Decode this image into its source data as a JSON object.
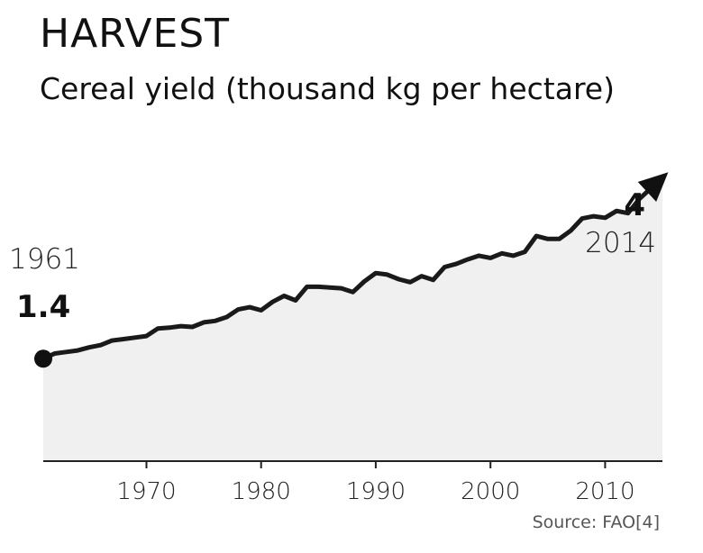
{
  "chart_data": {
    "type": "area",
    "title": "HARVEST",
    "subtitle": "Cereal yield (thousand kg per hectare)",
    "xlabel": "",
    "ylabel": "",
    "xlim": [
      1961,
      2015
    ],
    "ylim": [
      0,
      4.3
    ],
    "x_ticks": [
      1970,
      1980,
      1990,
      2000,
      2010
    ],
    "grid": false,
    "legend": "none",
    "x": [
      1961,
      1962,
      1963,
      1964,
      1965,
      1966,
      1967,
      1968,
      1969,
      1970,
      1971,
      1972,
      1973,
      1974,
      1975,
      1976,
      1977,
      1978,
      1979,
      1980,
      1981,
      1982,
      1983,
      1984,
      1985,
      1986,
      1987,
      1988,
      1989,
      1990,
      1991,
      1992,
      1993,
      1994,
      1995,
      1996,
      1997,
      1998,
      1999,
      2000,
      2001,
      2002,
      2003,
      2004,
      2005,
      2006,
      2007,
      2008,
      2009,
      2010,
      2011,
      2012,
      2013,
      2014
    ],
    "values": [
      1.35,
      1.42,
      1.44,
      1.46,
      1.5,
      1.53,
      1.59,
      1.61,
      1.63,
      1.65,
      1.75,
      1.76,
      1.78,
      1.77,
      1.83,
      1.85,
      1.9,
      2.0,
      2.03,
      1.99,
      2.1,
      2.18,
      2.12,
      2.3,
      2.3,
      2.29,
      2.28,
      2.23,
      2.37,
      2.48,
      2.46,
      2.4,
      2.36,
      2.44,
      2.39,
      2.56,
      2.6,
      2.66,
      2.71,
      2.68,
      2.74,
      2.71,
      2.76,
      2.97,
      2.93,
      2.93,
      3.04,
      3.2,
      3.23,
      3.21,
      3.3,
      3.27,
      3.46,
      3.6
    ],
    "fill_color": "#f0f0f0",
    "line_color": "#1a1a1a",
    "annotations": {
      "start": {
        "year": "1961",
        "value": "1.4"
      },
      "end": {
        "value": "4",
        "year": "2014"
      }
    },
    "source": "Source: FAO[4]"
  }
}
